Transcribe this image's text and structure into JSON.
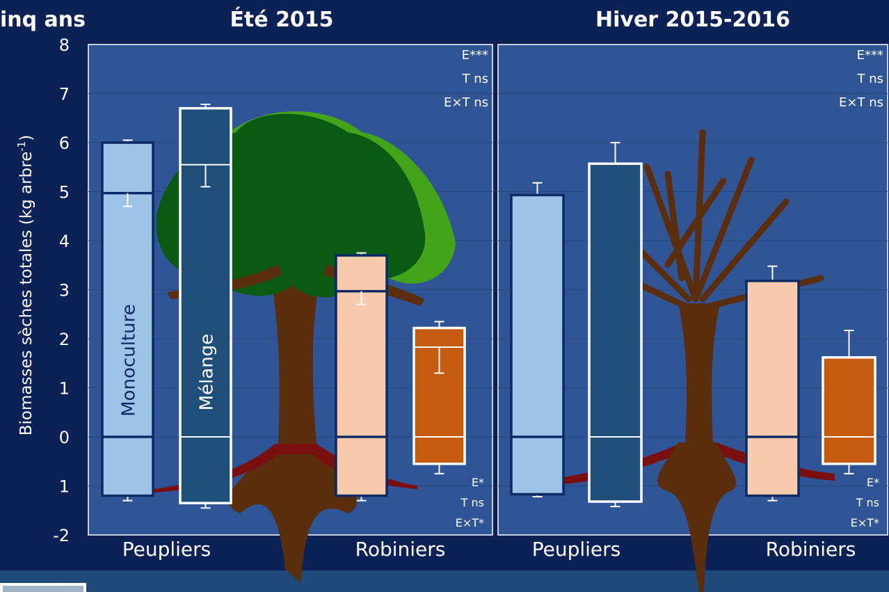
{
  "title": "inq ans",
  "chart_data": [
    {
      "type": "bar",
      "title": "Été 2015",
      "ylabel": {
        "text": "Biomasses sèches totales (kg arbre",
        "sup": "-1",
        "end": ")"
      },
      "ylim": [
        -2,
        8
      ],
      "yticks": [
        -2,
        {
          "value": -1,
          "label": "1"
        },
        0,
        1,
        2,
        3,
        4,
        5,
        6,
        7,
        8
      ],
      "grid": true,
      "categories": [
        "Peupliers",
        "Robiniers"
      ],
      "bar_labels": [
        "Monoculture",
        "Mélange"
      ],
      "bars": [
        {
          "top": 6.0,
          "top_err": 0.05,
          "mid": 4.97,
          "mid_err": 0.27,
          "bottom": -1.2,
          "bottom_err": 0.1,
          "color": "#9dc3e6",
          "border": "#0b2a66"
        },
        {
          "top": 6.7,
          "top_err": 0.08,
          "mid": 5.55,
          "mid_err": 0.45,
          "bottom": -1.35,
          "bottom_err": 0.1,
          "color": "#1f4e79",
          "border": "#ffffff"
        },
        {
          "top": 3.7,
          "top_err": 0.05,
          "mid": 2.97,
          "mid_err": 0.27,
          "bottom": -1.2,
          "bottom_err": 0.1,
          "color": "#f8cbad",
          "border": "#0b2a66"
        },
        {
          "top": 2.22,
          "top_err": 0.13,
          "mid": 1.83,
          "mid_err": 0.53,
          "bottom": -0.55,
          "bottom_err": 0.2,
          "color": "#c55a11",
          "border": "#ffffff"
        }
      ],
      "stats_top": [
        "E***",
        "T ns",
        "E×T ns"
      ],
      "stats_bottom": [
        "E*",
        "T ns",
        "E×T*"
      ]
    },
    {
      "type": "bar",
      "title": "Hiver 2015-2016",
      "ylim": [
        -2,
        8
      ],
      "grid": true,
      "categories": [
        "Peupliers",
        "Robiniers"
      ],
      "bars": [
        {
          "top": 4.93,
          "top_err": 0.25,
          "bottom": -1.17,
          "bottom_err": 0.05,
          "color": "#9dc3e6",
          "border": "#0b2a66"
        },
        {
          "top": 5.57,
          "top_err": 0.43,
          "bottom": -1.32,
          "bottom_err": 0.1,
          "color": "#1f4e79",
          "border": "#ffffff"
        },
        {
          "top": 3.18,
          "top_err": 0.3,
          "bottom": -1.2,
          "bottom_err": 0.1,
          "color": "#f8cbad",
          "border": "#0b2a66"
        },
        {
          "top": 1.62,
          "top_err": 0.55,
          "bottom": -0.55,
          "bottom_err": 0.2,
          "color": "#c55a11",
          "border": "#ffffff"
        }
      ],
      "stats_top": [
        "E***",
        "T ns",
        "E×T ns"
      ],
      "stats_bottom": [
        "E*",
        "T ns",
        "E×T*"
      ]
    }
  ]
}
